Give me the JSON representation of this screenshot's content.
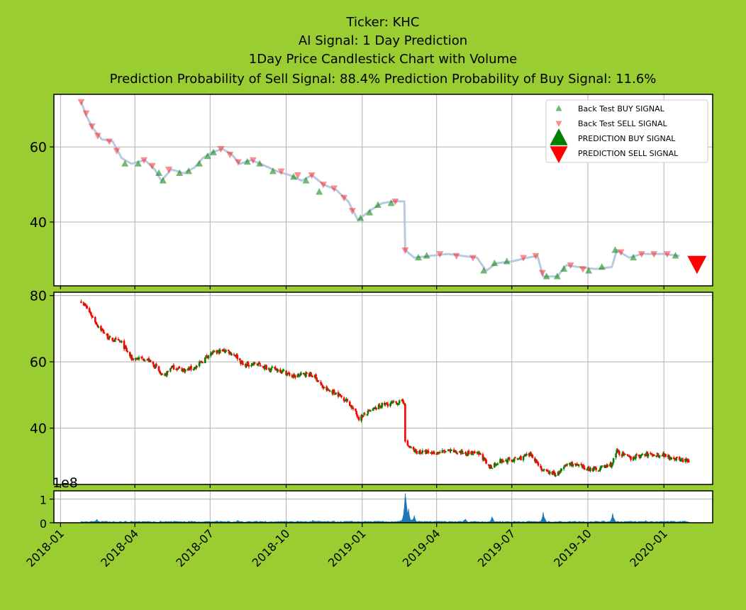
{
  "title_lines": [
    "Ticker: KHC",
    "AI Signal: 1 Day Prediction",
    "1Day Price Candlestick Chart with Volume",
    "Prediction Probability of Sell Signal: 88.4%      Prediction Probability of Buy Signal: 11.6%"
  ],
  "colors": {
    "background": "#9acd32",
    "buy": "#008000",
    "sell": "#ff0000",
    "price_line": "#b0c4de",
    "volume": "#1f77b4",
    "grid": "#b0b0b0"
  },
  "chart_data": [
    {
      "type": "scatter",
      "panel": "signals",
      "x_type": "date",
      "xlim": [
        "2017-12-24",
        "2020-02-29"
      ],
      "ylim": [
        23,
        74
      ],
      "yticks": [
        40,
        60
      ],
      "grid": true,
      "legend": {
        "placement": "top-right",
        "entries": [
          "Back Test BUY SIGNAL",
          "Back Test SELL SIGNAL",
          "PREDICTION BUY SIGNAL",
          "PREDICTION SELL SIGNAL"
        ]
      },
      "price_path": [
        [
          "2018-01-26",
          72
        ],
        [
          "2018-02-02",
          68
        ],
        [
          "2018-02-09",
          65
        ],
        [
          "2018-02-20",
          62
        ],
        [
          "2018-03-05",
          61.5
        ],
        [
          "2018-03-16",
          57
        ],
        [
          "2018-03-28",
          55.5
        ],
        [
          "2018-04-13",
          56.5
        ],
        [
          "2018-04-25",
          54
        ],
        [
          "2018-05-03",
          51
        ],
        [
          "2018-05-15",
          54
        ],
        [
          "2018-05-30",
          53
        ],
        [
          "2018-06-12",
          54.5
        ],
        [
          "2018-06-22",
          57
        ],
        [
          "2018-07-03",
          58.5
        ],
        [
          "2018-07-16",
          59.5
        ],
        [
          "2018-07-27",
          58
        ],
        [
          "2018-08-06",
          55.5
        ],
        [
          "2018-08-20",
          56.5
        ],
        [
          "2018-09-05",
          55
        ],
        [
          "2018-09-20",
          53.5
        ],
        [
          "2018-10-05",
          52.5
        ],
        [
          "2018-10-20",
          51
        ],
        [
          "2018-11-01",
          52.5
        ],
        [
          "2018-11-15",
          50
        ],
        [
          "2018-12-01",
          48.5
        ],
        [
          "2018-12-15",
          45.5
        ],
        [
          "2018-12-27",
          40.5
        ],
        [
          "2019-01-10",
          43
        ],
        [
          "2019-01-25",
          45
        ],
        [
          "2019-02-08",
          45.5
        ],
        [
          "2019-02-21",
          45.5
        ],
        [
          "2019-02-22",
          32.5
        ],
        [
          "2019-03-05",
          30.5
        ],
        [
          "2019-03-25",
          31
        ],
        [
          "2019-04-15",
          31.5
        ],
        [
          "2019-05-01",
          31
        ],
        [
          "2019-05-20",
          30.5
        ],
        [
          "2019-05-31",
          27
        ],
        [
          "2019-06-12",
          29
        ],
        [
          "2019-07-01",
          29.5
        ],
        [
          "2019-07-20",
          30.5
        ],
        [
          "2019-08-01",
          31
        ],
        [
          "2019-08-08",
          25.5
        ],
        [
          "2019-08-25",
          25.5
        ],
        [
          "2019-09-05",
          28.5
        ],
        [
          "2019-09-20",
          28
        ],
        [
          "2019-10-10",
          27.5
        ],
        [
          "2019-10-30",
          28
        ],
        [
          "2019-11-05",
          32.5
        ],
        [
          "2019-11-20",
          30.5
        ],
        [
          "2019-12-05",
          31.5
        ],
        [
          "2019-12-31",
          31.5
        ],
        [
          "2020-01-20",
          31
        ]
      ],
      "backtest_buy": [
        [
          "2018-03-20",
          55.5
        ],
        [
          "2018-04-05",
          55.5
        ],
        [
          "2018-04-30",
          53
        ],
        [
          "2018-05-05",
          51
        ],
        [
          "2018-05-25",
          53
        ],
        [
          "2018-06-05",
          53.5
        ],
        [
          "2018-06-18",
          55.5
        ],
        [
          "2018-06-28",
          57.5
        ],
        [
          "2018-07-05",
          58.5
        ],
        [
          "2018-08-15",
          56
        ],
        [
          "2018-08-30",
          55.5
        ],
        [
          "2018-09-15",
          53.5
        ],
        [
          "2018-10-10",
          52
        ],
        [
          "2018-10-25",
          51
        ],
        [
          "2018-11-10",
          48
        ],
        [
          "2018-12-30",
          41
        ],
        [
          "2019-01-10",
          42.5
        ],
        [
          "2019-01-20",
          44.5
        ],
        [
          "2019-02-05",
          45
        ],
        [
          "2019-03-10",
          30.5
        ],
        [
          "2019-03-20",
          31
        ],
        [
          "2019-05-28",
          27
        ],
        [
          "2019-06-10",
          29
        ],
        [
          "2019-06-25",
          29.5
        ],
        [
          "2019-08-12",
          25.5
        ],
        [
          "2019-08-25",
          25.5
        ],
        [
          "2019-09-02",
          27.5
        ],
        [
          "2019-10-02",
          27
        ],
        [
          "2019-10-18",
          28
        ],
        [
          "2019-11-03",
          32.5
        ],
        [
          "2019-11-25",
          30.5
        ],
        [
          "2020-01-15",
          31
        ]
      ],
      "backtest_sell": [
        [
          "2018-01-26",
          72
        ],
        [
          "2018-02-01",
          69
        ],
        [
          "2018-02-08",
          65.5
        ],
        [
          "2018-02-15",
          63
        ],
        [
          "2018-03-01",
          61.5
        ],
        [
          "2018-03-10",
          59
        ],
        [
          "2018-04-12",
          56.5
        ],
        [
          "2018-04-22",
          55
        ],
        [
          "2018-05-12",
          54
        ],
        [
          "2018-07-14",
          59.5
        ],
        [
          "2018-07-25",
          58
        ],
        [
          "2018-08-04",
          56
        ],
        [
          "2018-08-22",
          56.5
        ],
        [
          "2018-09-25",
          53.5
        ],
        [
          "2018-10-15",
          52.5
        ],
        [
          "2018-11-01",
          52.5
        ],
        [
          "2018-11-15",
          50
        ],
        [
          "2018-11-28",
          49
        ],
        [
          "2018-12-10",
          46.5
        ],
        [
          "2018-12-20",
          43
        ],
        [
          "2019-02-10",
          45.5
        ],
        [
          "2019-02-22",
          32.5
        ],
        [
          "2019-04-05",
          31.5
        ],
        [
          "2019-04-25",
          31
        ],
        [
          "2019-05-15",
          30.5
        ],
        [
          "2019-07-15",
          30.5
        ],
        [
          "2019-07-30",
          31
        ],
        [
          "2019-08-07",
          26.5
        ],
        [
          "2019-09-10",
          28.5
        ],
        [
          "2019-09-25",
          27.5
        ],
        [
          "2019-11-10",
          32
        ],
        [
          "2019-12-05",
          31.5
        ],
        [
          "2019-12-20",
          31.5
        ],
        [
          "2020-01-05",
          31.5
        ]
      ],
      "prediction_sell": [
        [
          "2020-02-10",
          29
        ]
      ],
      "prediction_buy": []
    },
    {
      "type": "candlestick",
      "panel": "price",
      "x_type": "date",
      "xlim": [
        "2017-12-24",
        "2020-02-29"
      ],
      "ylim": [
        23,
        81
      ],
      "yticks": [
        40,
        60,
        80
      ],
      "grid": true,
      "path": [
        [
          "2018-01-26",
          78.5
        ],
        [
          "2018-02-05",
          75
        ],
        [
          "2018-02-15",
          71
        ],
        [
          "2018-03-01",
          67
        ],
        [
          "2018-03-15",
          66
        ],
        [
          "2018-03-28",
          61
        ],
        [
          "2018-04-15",
          61
        ],
        [
          "2018-04-28",
          58
        ],
        [
          "2018-05-05",
          55
        ],
        [
          "2018-05-15",
          58.5
        ],
        [
          "2018-06-01",
          57.5
        ],
        [
          "2018-06-15",
          58.5
        ],
        [
          "2018-06-28",
          62
        ],
        [
          "2018-07-10",
          63
        ],
        [
          "2018-07-20",
          63.5
        ],
        [
          "2018-08-01",
          62
        ],
        [
          "2018-08-10",
          59
        ],
        [
          "2018-08-25",
          59.5
        ],
        [
          "2018-09-10",
          58
        ],
        [
          "2018-09-25",
          57.5
        ],
        [
          "2018-10-10",
          55.5
        ],
        [
          "2018-10-25",
          56.5
        ],
        [
          "2018-11-05",
          55.5
        ],
        [
          "2018-11-15",
          52
        ],
        [
          "2018-12-01",
          50.5
        ],
        [
          "2018-12-15",
          48
        ],
        [
          "2018-12-28",
          43
        ],
        [
          "2019-01-10",
          45
        ],
        [
          "2019-01-25",
          47
        ],
        [
          "2019-02-21",
          48
        ],
        [
          "2019-02-22",
          35.5
        ],
        [
          "2019-03-05",
          33
        ],
        [
          "2019-03-25",
          32.5
        ],
        [
          "2019-04-15",
          33
        ],
        [
          "2019-05-10",
          32.5
        ],
        [
          "2019-05-25",
          32
        ],
        [
          "2019-06-03",
          28
        ],
        [
          "2019-06-15",
          30
        ],
        [
          "2019-07-05",
          30.5
        ],
        [
          "2019-07-25",
          32
        ],
        [
          "2019-08-08",
          27
        ],
        [
          "2019-08-25",
          26
        ],
        [
          "2019-09-08",
          29.5
        ],
        [
          "2019-09-25",
          28
        ],
        [
          "2019-10-10",
          27.5
        ],
        [
          "2019-10-30",
          29
        ],
        [
          "2019-11-05",
          33
        ],
        [
          "2019-11-20",
          31
        ],
        [
          "2019-12-10",
          32
        ],
        [
          "2019-12-31",
          32
        ],
        [
          "2020-01-20",
          30.5
        ],
        [
          "2020-01-31",
          30
        ]
      ]
    },
    {
      "type": "area",
      "panel": "volume",
      "x_type": "date",
      "xlim": [
        "2017-12-24",
        "2020-02-29"
      ],
      "ylim": [
        0,
        1.35
      ],
      "yticks": [
        0,
        1
      ],
      "offset_label": "1e8",
      "x_tick_labels": [
        "2018-01",
        "2018-04",
        "2018-07",
        "2018-10",
        "2019-01",
        "2019-04",
        "2019-07",
        "2019-10",
        "2020-01"
      ],
      "spikes": [
        [
          "2018-02-14",
          0.15
        ],
        [
          "2018-05-02",
          0.08
        ],
        [
          "2018-08-03",
          0.1
        ],
        [
          "2018-11-02",
          0.1
        ],
        [
          "2019-02-22",
          1.25
        ],
        [
          "2019-02-26",
          0.6
        ],
        [
          "2019-03-05",
          0.3
        ],
        [
          "2019-05-06",
          0.15
        ],
        [
          "2019-06-07",
          0.25
        ],
        [
          "2019-08-08",
          0.45
        ],
        [
          "2019-10-31",
          0.4
        ],
        [
          "2019-12-10",
          0.1
        ]
      ],
      "baseline": 0.06
    }
  ]
}
